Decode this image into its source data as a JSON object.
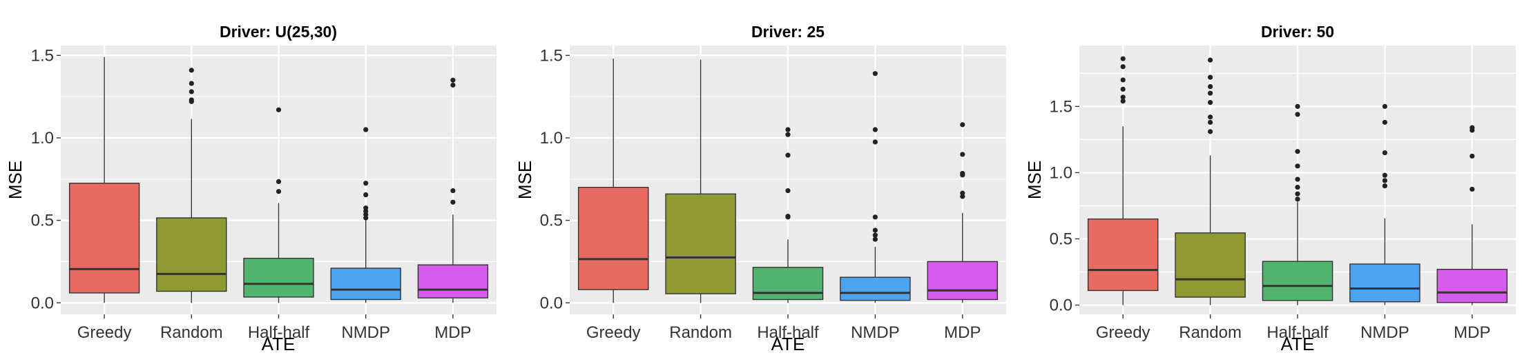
{
  "chart_data": [
    {
      "type": "box",
      "title": "Driver: U(25,30)",
      "xlabel": "ATE",
      "ylabel": "MSE",
      "categories": [
        "Greedy",
        "Random",
        "Half-half",
        "NMDP",
        "MDP"
      ],
      "colors": [
        "#E76B61",
        "#8F9A32",
        "#52B46F",
        "#4EA3EE",
        "#D65CEB"
      ],
      "ylim": [
        -0.07,
        1.56
      ],
      "yticks": [
        0.0,
        0.5,
        1.0,
        1.5
      ],
      "ytick_labels": [
        "0.0",
        "0.5",
        "1.0",
        "1.5"
      ],
      "grid": true,
      "boxes": [
        {
          "min": 0.0,
          "q1": 0.06,
          "median": 0.205,
          "q3": 0.725,
          "max": 1.49,
          "outliers": []
        },
        {
          "min": 0.0,
          "q1": 0.07,
          "median": 0.175,
          "q3": 0.515,
          "max": 1.115,
          "outliers": [
            1.22,
            1.23,
            1.28,
            1.33,
            1.41
          ]
        },
        {
          "min": 0.0,
          "q1": 0.035,
          "median": 0.115,
          "q3": 0.27,
          "max": 0.605,
          "outliers": [
            0.675,
            0.735,
            1.17
          ]
        },
        {
          "min": 0.0,
          "q1": 0.02,
          "median": 0.08,
          "q3": 0.21,
          "max": 0.5,
          "outliers": [
            0.515,
            0.535,
            0.555,
            0.575,
            0.655,
            0.725,
            1.05
          ]
        },
        {
          "min": 0.0,
          "q1": 0.03,
          "median": 0.08,
          "q3": 0.23,
          "max": 0.535,
          "outliers": [
            0.61,
            0.68,
            1.32,
            1.35
          ]
        }
      ]
    },
    {
      "type": "box",
      "title": "Driver: 25",
      "xlabel": "ATE",
      "ylabel": "MSE",
      "categories": [
        "Greedy",
        "Random",
        "Half-half",
        "NMDP",
        "MDP"
      ],
      "colors": [
        "#E76B61",
        "#8F9A32",
        "#52B46F",
        "#4EA3EE",
        "#D65CEB"
      ],
      "ylim": [
        -0.07,
        1.56
      ],
      "yticks": [
        0.0,
        0.5,
        1.0,
        1.5
      ],
      "ytick_labels": [
        "0.0",
        "0.5",
        "1.0",
        "1.5"
      ],
      "grid": true,
      "boxes": [
        {
          "min": 0.0,
          "q1": 0.08,
          "median": 0.265,
          "q3": 0.7,
          "max": 1.48,
          "outliers": []
        },
        {
          "min": 0.0,
          "q1": 0.055,
          "median": 0.275,
          "q3": 0.66,
          "max": 1.475,
          "outliers": []
        },
        {
          "min": 0.0,
          "q1": 0.02,
          "median": 0.06,
          "q3": 0.215,
          "max": 0.385,
          "outliers": [
            0.52,
            0.525,
            0.68,
            0.895,
            1.02,
            1.05
          ]
        },
        {
          "min": 0.0,
          "q1": 0.015,
          "median": 0.06,
          "q3": 0.155,
          "max": 0.34,
          "outliers": [
            0.385,
            0.41,
            0.44,
            0.52,
            0.975,
            1.05,
            1.39
          ]
        },
        {
          "min": 0.0,
          "q1": 0.02,
          "median": 0.075,
          "q3": 0.25,
          "max": 0.545,
          "outliers": [
            0.645,
            0.665,
            0.775,
            0.785,
            0.9,
            1.08
          ]
        }
      ]
    },
    {
      "type": "box",
      "title": "Driver: 50",
      "xlabel": "ATE",
      "ylabel": "MSE",
      "categories": [
        "Greedy",
        "Random",
        "Half-half",
        "NMDP",
        "MDP"
      ],
      "colors": [
        "#E76B61",
        "#8F9A32",
        "#52B46F",
        "#4EA3EE",
        "#D65CEB"
      ],
      "ylim": [
        -0.07,
        1.96
      ],
      "yticks": [
        0.0,
        0.5,
        1.0,
        1.5
      ],
      "ytick_labels": [
        "0.0",
        "0.5",
        "1.0",
        "1.5"
      ],
      "grid": true,
      "boxes": [
        {
          "min": 0.0,
          "q1": 0.11,
          "median": 0.265,
          "q3": 0.65,
          "max": 1.35,
          "outliers": [
            1.54,
            1.57,
            1.63,
            1.7,
            1.8,
            1.86
          ]
        },
        {
          "min": 0.0,
          "q1": 0.06,
          "median": 0.195,
          "q3": 0.545,
          "max": 1.13,
          "outliers": [
            1.31,
            1.38,
            1.42,
            1.53,
            1.6,
            1.65,
            1.72,
            1.85
          ]
        },
        {
          "min": 0.0,
          "q1": 0.035,
          "median": 0.145,
          "q3": 0.33,
          "max": 0.78,
          "outliers": [
            0.8,
            0.84,
            0.89,
            0.95,
            1.05,
            1.16,
            1.44,
            1.5
          ]
        },
        {
          "min": 0.0,
          "q1": 0.025,
          "median": 0.125,
          "q3": 0.31,
          "max": 0.655,
          "outliers": [
            0.9,
            0.94,
            0.98,
            1.15,
            1.38,
            1.5
          ]
        },
        {
          "min": 0.0,
          "q1": 0.02,
          "median": 0.095,
          "q3": 0.27,
          "max": 0.61,
          "outliers": [
            0.875,
            1.125,
            1.32,
            1.34
          ]
        }
      ]
    }
  ]
}
